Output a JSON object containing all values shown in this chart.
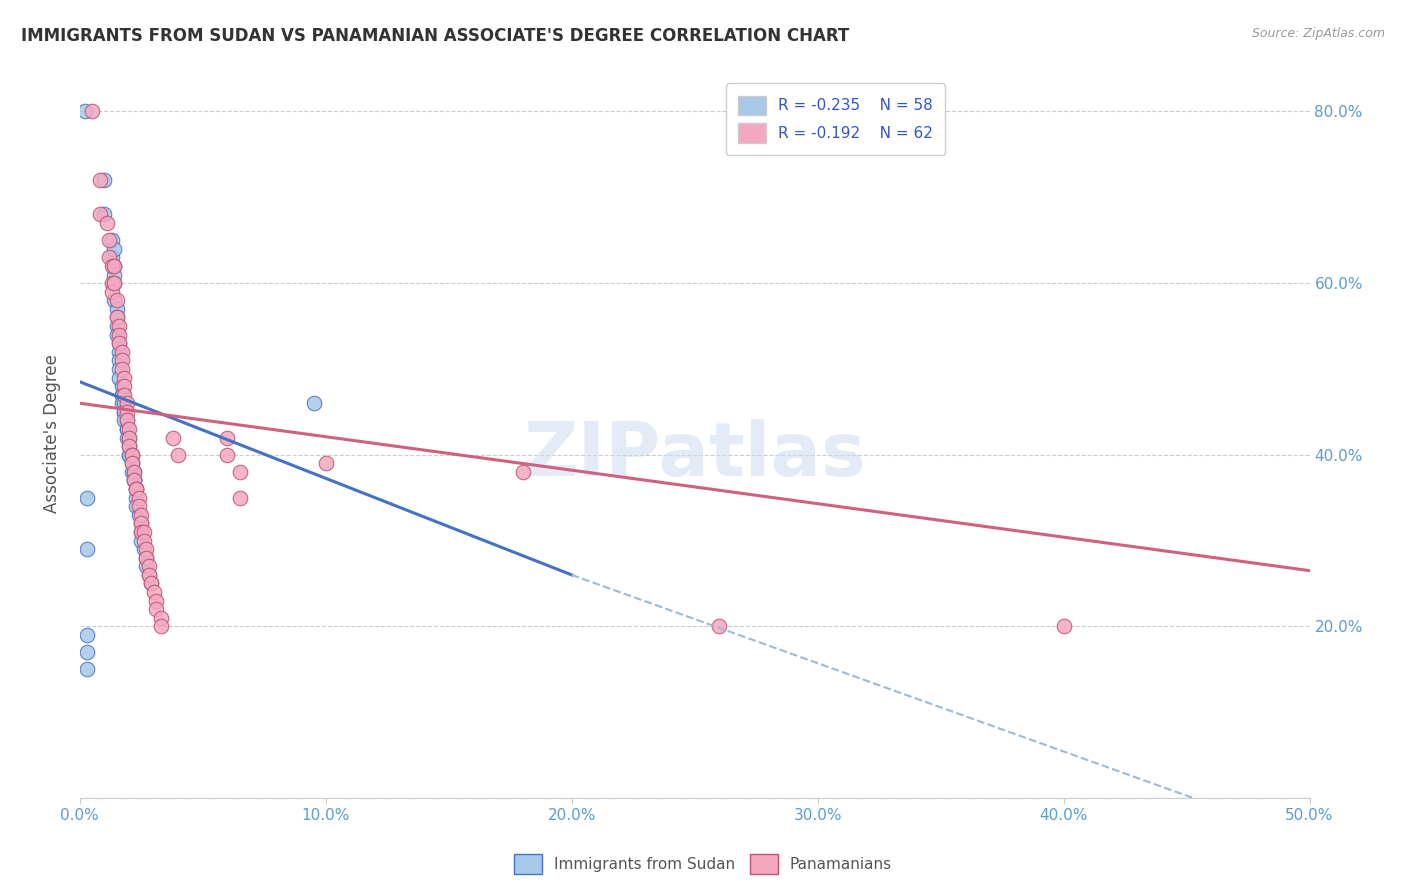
{
  "title": "IMMIGRANTS FROM SUDAN VS PANAMANIAN ASSOCIATE'S DEGREE CORRELATION CHART",
  "source": "Source: ZipAtlas.com",
  "xlabel_color": "#5b9bd5",
  "ylabel": "Associate's Degree",
  "xlim": [
    0.0,
    0.5
  ],
  "ylim": [
    0.0,
    0.85
  ],
  "xticks": [
    0.0,
    0.1,
    0.2,
    0.3,
    0.4,
    0.5
  ],
  "xtick_labels": [
    "0.0%",
    "10.0%",
    "20.0%",
    "30.0%",
    "40.0%",
    "50.0%"
  ],
  "yticks": [
    0.0,
    0.2,
    0.4,
    0.6,
    0.8
  ],
  "right_ytick_labels": [
    "20.0%",
    "40.0%",
    "60.0%",
    "80.0%"
  ],
  "legend_r1": "R = -0.235",
  "legend_n1": "N = 58",
  "legend_r2": "R = -0.192",
  "legend_n2": "N = 62",
  "color_blue": "#a8c8e8",
  "color_pink": "#f4a8c0",
  "line_color_blue": "#4472c4",
  "line_color_pink": "#d06080",
  "watermark": "ZIPatlas",
  "sudan_points": [
    [
      0.002,
      0.8
    ],
    [
      0.01,
      0.72
    ],
    [
      0.01,
      0.68
    ],
    [
      0.013,
      0.65
    ],
    [
      0.013,
      0.63
    ],
    [
      0.014,
      0.64
    ],
    [
      0.014,
      0.62
    ],
    [
      0.014,
      0.61
    ],
    [
      0.014,
      0.6
    ],
    [
      0.014,
      0.58
    ],
    [
      0.015,
      0.57
    ],
    [
      0.015,
      0.56
    ],
    [
      0.015,
      0.55
    ],
    [
      0.015,
      0.54
    ],
    [
      0.016,
      0.53
    ],
    [
      0.016,
      0.52
    ],
    [
      0.016,
      0.51
    ],
    [
      0.016,
      0.5
    ],
    [
      0.016,
      0.49
    ],
    [
      0.017,
      0.48
    ],
    [
      0.017,
      0.47
    ],
    [
      0.017,
      0.47
    ],
    [
      0.017,
      0.46
    ],
    [
      0.018,
      0.46
    ],
    [
      0.018,
      0.45
    ],
    [
      0.018,
      0.45
    ],
    [
      0.018,
      0.44
    ],
    [
      0.019,
      0.44
    ],
    [
      0.019,
      0.43
    ],
    [
      0.019,
      0.43
    ],
    [
      0.019,
      0.42
    ],
    [
      0.02,
      0.42
    ],
    [
      0.02,
      0.41
    ],
    [
      0.02,
      0.4
    ],
    [
      0.02,
      0.4
    ],
    [
      0.021,
      0.39
    ],
    [
      0.021,
      0.38
    ],
    [
      0.022,
      0.38
    ],
    [
      0.022,
      0.37
    ],
    [
      0.022,
      0.37
    ],
    [
      0.023,
      0.36
    ],
    [
      0.023,
      0.35
    ],
    [
      0.023,
      0.34
    ],
    [
      0.024,
      0.33
    ],
    [
      0.025,
      0.32
    ],
    [
      0.025,
      0.31
    ],
    [
      0.025,
      0.3
    ],
    [
      0.026,
      0.29
    ],
    [
      0.027,
      0.28
    ],
    [
      0.027,
      0.27
    ],
    [
      0.028,
      0.26
    ],
    [
      0.029,
      0.25
    ],
    [
      0.003,
      0.35
    ],
    [
      0.003,
      0.29
    ],
    [
      0.003,
      0.19
    ],
    [
      0.003,
      0.17
    ],
    [
      0.003,
      0.15
    ],
    [
      0.095,
      0.46
    ]
  ],
  "panama_points": [
    [
      0.005,
      0.8
    ],
    [
      0.008,
      0.72
    ],
    [
      0.008,
      0.68
    ],
    [
      0.011,
      0.67
    ],
    [
      0.012,
      0.65
    ],
    [
      0.012,
      0.63
    ],
    [
      0.013,
      0.62
    ],
    [
      0.013,
      0.6
    ],
    [
      0.013,
      0.59
    ],
    [
      0.014,
      0.62
    ],
    [
      0.014,
      0.6
    ],
    [
      0.015,
      0.58
    ],
    [
      0.015,
      0.56
    ],
    [
      0.016,
      0.55
    ],
    [
      0.016,
      0.54
    ],
    [
      0.016,
      0.53
    ],
    [
      0.017,
      0.52
    ],
    [
      0.017,
      0.51
    ],
    [
      0.017,
      0.5
    ],
    [
      0.018,
      0.49
    ],
    [
      0.018,
      0.48
    ],
    [
      0.018,
      0.47
    ],
    [
      0.019,
      0.46
    ],
    [
      0.019,
      0.45
    ],
    [
      0.019,
      0.44
    ],
    [
      0.02,
      0.43
    ],
    [
      0.02,
      0.42
    ],
    [
      0.02,
      0.41
    ],
    [
      0.021,
      0.4
    ],
    [
      0.021,
      0.4
    ],
    [
      0.021,
      0.39
    ],
    [
      0.022,
      0.38
    ],
    [
      0.022,
      0.37
    ],
    [
      0.023,
      0.36
    ],
    [
      0.023,
      0.36
    ],
    [
      0.024,
      0.35
    ],
    [
      0.024,
      0.34
    ],
    [
      0.025,
      0.33
    ],
    [
      0.025,
      0.32
    ],
    [
      0.025,
      0.31
    ],
    [
      0.026,
      0.31
    ],
    [
      0.026,
      0.3
    ],
    [
      0.027,
      0.29
    ],
    [
      0.027,
      0.28
    ],
    [
      0.028,
      0.27
    ],
    [
      0.028,
      0.26
    ],
    [
      0.029,
      0.25
    ],
    [
      0.03,
      0.24
    ],
    [
      0.031,
      0.23
    ],
    [
      0.031,
      0.22
    ],
    [
      0.033,
      0.21
    ],
    [
      0.033,
      0.2
    ],
    [
      0.038,
      0.42
    ],
    [
      0.04,
      0.4
    ],
    [
      0.06,
      0.42
    ],
    [
      0.06,
      0.4
    ],
    [
      0.065,
      0.38
    ],
    [
      0.065,
      0.35
    ],
    [
      0.1,
      0.39
    ],
    [
      0.18,
      0.38
    ],
    [
      0.26,
      0.2
    ],
    [
      0.4,
      0.2
    ]
  ],
  "sudan_trendline": {
    "x": [
      0.0,
      0.2
    ],
    "y": [
      0.485,
      0.26
    ]
  },
  "panama_trendline": {
    "x": [
      0.0,
      0.5
    ],
    "y": [
      0.46,
      0.265
    ]
  },
  "dashed_extension": {
    "x": [
      0.2,
      0.55
    ],
    "y": [
      0.26,
      -0.1
    ]
  }
}
